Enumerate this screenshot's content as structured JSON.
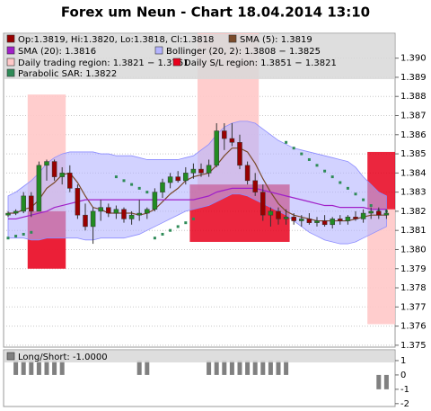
{
  "chart_data": {
    "type": "candlestick",
    "title": "Forex um Neun - Chart 18.04.2014 13:10",
    "ylim": [
      1.3749,
      1.3913
    ],
    "yticks": [
      1.375,
      1.376,
      1.377,
      1.378,
      1.379,
      {
        "value": 1.38,
        "label": "1.380"
      },
      1.381,
      1.382,
      1.383,
      1.384,
      1.385,
      1.386,
      1.387,
      1.388,
      1.389,
      {
        "value": 1.39,
        "label": "1.390"
      }
    ],
    "grid": true,
    "candles": {
      "name": "Op:1.3819, Hi:1.3820, Lo:1.3818, Cl:1.3818",
      "color": "#990000",
      "up_color": "#228b22",
      "open": [
        1.3818,
        1.3819,
        1.382,
        1.3828,
        1.382,
        1.3844,
        1.3846,
        1.3838,
        1.384,
        1.3832,
        1.3818,
        1.3812,
        1.382,
        1.3822,
        1.3819,
        1.3821,
        1.3816,
        1.3818,
        1.3819,
        1.3821,
        1.383,
        1.3835,
        1.3838,
        1.3836,
        1.384,
        1.3842,
        1.384,
        1.3844,
        1.3862,
        1.3858,
        1.3856,
        1.3844,
        1.3836,
        1.383,
        1.3818,
        1.382,
        1.3816,
        1.3817,
        1.3815,
        1.3816,
        1.3814,
        1.3815,
        1.3813,
        1.3816,
        1.3815,
        1.3817,
        1.3816,
        1.3819,
        1.382,
        1.3818
      ],
      "high": [
        1.382,
        1.3821,
        1.383,
        1.383,
        1.3846,
        1.3847,
        1.3847,
        1.3843,
        1.3844,
        1.3834,
        1.3824,
        1.3822,
        1.3826,
        1.3824,
        1.3823,
        1.3822,
        1.382,
        1.3826,
        1.3822,
        1.3832,
        1.3837,
        1.384,
        1.3841,
        1.3843,
        1.3845,
        1.3845,
        1.3847,
        1.3866,
        1.3866,
        1.3866,
        1.386,
        1.3846,
        1.384,
        1.3834,
        1.3822,
        1.3822,
        1.3821,
        1.3819,
        1.3818,
        1.3819,
        1.3817,
        1.3818,
        1.3817,
        1.3818,
        1.3818,
        1.382,
        1.3821,
        1.3822,
        1.3822,
        1.3821
      ],
      "low": [
        1.3817,
        1.3818,
        1.3819,
        1.3817,
        1.382,
        1.3836,
        1.3836,
        1.3834,
        1.383,
        1.3816,
        1.381,
        1.3803,
        1.3815,
        1.3817,
        1.3816,
        1.3814,
        1.3813,
        1.3815,
        1.3816,
        1.382,
        1.3827,
        1.3832,
        1.3835,
        1.3834,
        1.3837,
        1.3838,
        1.3838,
        1.3843,
        1.3852,
        1.3854,
        1.3842,
        1.3834,
        1.3828,
        1.3815,
        1.3812,
        1.3813,
        1.3813,
        1.3813,
        1.3812,
        1.3813,
        1.3812,
        1.3812,
        1.3811,
        1.3813,
        1.3813,
        1.3815,
        1.3814,
        1.3816,
        1.3816,
        1.3816
      ],
      "close": [
        1.3819,
        1.382,
        1.3828,
        1.382,
        1.3844,
        1.3846,
        1.3838,
        1.384,
        1.3832,
        1.3818,
        1.3812,
        1.382,
        1.3822,
        1.3819,
        1.3821,
        1.3816,
        1.3818,
        1.3819,
        1.3821,
        1.383,
        1.3835,
        1.3838,
        1.3836,
        1.384,
        1.3842,
        1.384,
        1.3844,
        1.3862,
        1.3858,
        1.3856,
        1.3844,
        1.3836,
        1.383,
        1.3818,
        1.382,
        1.3816,
        1.3817,
        1.3815,
        1.3816,
        1.3814,
        1.3815,
        1.3813,
        1.3816,
        1.3815,
        1.3817,
        1.3816,
        1.3819,
        1.382,
        1.3818,
        1.3819
      ]
    },
    "band": {
      "name": "Bollinger (20, 2): 1.3808 − 1.3825",
      "color": "#b4b4ff",
      "upper": [
        1.3828,
        1.383,
        1.3833,
        1.3836,
        1.384,
        1.3845,
        1.3848,
        1.385,
        1.3851,
        1.3851,
        1.3851,
        1.3851,
        1.385,
        1.385,
        1.3849,
        1.3849,
        1.3849,
        1.3848,
        1.3847,
        1.3847,
        1.3847,
        1.3847,
        1.3847,
        1.3848,
        1.3849,
        1.3852,
        1.3855,
        1.386,
        1.3864,
        1.3866,
        1.3867,
        1.3867,
        1.3866,
        1.3863,
        1.386,
        1.3857,
        1.3855,
        1.3853,
        1.3852,
        1.3851,
        1.385,
        1.3849,
        1.3848,
        1.3847,
        1.3846,
        1.3843,
        1.3838,
        1.3834,
        1.383,
        1.3828
      ],
      "lower": [
        1.3806,
        1.3806,
        1.3806,
        1.3805,
        1.3805,
        1.3806,
        1.3806,
        1.3806,
        1.3806,
        1.3806,
        1.3805,
        1.3805,
        1.3806,
        1.3806,
        1.3806,
        1.3806,
        1.3807,
        1.3808,
        1.381,
        1.3812,
        1.3814,
        1.3816,
        1.3818,
        1.382,
        1.3821,
        1.3822,
        1.3823,
        1.3825,
        1.3827,
        1.3829,
        1.3829,
        1.3828,
        1.3826,
        1.3824,
        1.3822,
        1.382,
        1.3818,
        1.3815,
        1.3812,
        1.3809,
        1.3807,
        1.3805,
        1.3804,
        1.3803,
        1.3803,
        1.3804,
        1.3806,
        1.3808,
        1.381,
        1.3812
      ]
    },
    "series": [
      {
        "name": "SMA (5): 1.3819",
        "color": "#7a4a2a",
        "style": "line",
        "values": [
          1.3819,
          1.3819,
          1.3821,
          1.3822,
          1.3826,
          1.3832,
          1.3835,
          1.3839,
          1.384,
          1.3835,
          1.3828,
          1.3822,
          1.3821,
          1.3819,
          1.3819,
          1.3819,
          1.3819,
          1.3818,
          1.3819,
          1.3821,
          1.3825,
          1.3829,
          1.3832,
          1.3836,
          1.3838,
          1.3839,
          1.384,
          1.3844,
          1.3849,
          1.3853,
          1.3853,
          1.3851,
          1.3845,
          1.3837,
          1.383,
          1.3824,
          1.382,
          1.3818,
          1.3817,
          1.3816,
          1.3815,
          1.3815,
          1.3815,
          1.3815,
          1.3815,
          1.3816,
          1.3817,
          1.3818,
          1.3818,
          1.3818
        ]
      },
      {
        "name": "SMA (20): 1.3816",
        "color": "#a020c8",
        "style": "line",
        "values": [
          1.3816,
          1.3816,
          1.3817,
          1.3818,
          1.3819,
          1.382,
          1.3822,
          1.3823,
          1.3824,
          1.3825,
          1.3826,
          1.3826,
          1.3826,
          1.3826,
          1.3826,
          1.3826,
          1.3826,
          1.3826,
          1.3826,
          1.3826,
          1.3826,
          1.3826,
          1.3826,
          1.3826,
          1.3826,
          1.3827,
          1.3828,
          1.383,
          1.3831,
          1.3832,
          1.3832,
          1.3832,
          1.3832,
          1.3831,
          1.383,
          1.3829,
          1.3828,
          1.3827,
          1.3826,
          1.3825,
          1.3824,
          1.3823,
          1.3823,
          1.3822,
          1.3822,
          1.3822,
          1.3822,
          1.3821,
          1.3821,
          1.3821
        ]
      },
      {
        "name": "Parabolic SAR: 1.3822",
        "color": "#2e8b57",
        "style": "dots",
        "values": [
          1.3806,
          1.3807,
          1.3808,
          1.3809,
          null,
          null,
          null,
          null,
          null,
          null,
          null,
          null,
          null,
          null,
          1.3838,
          1.3836,
          1.3834,
          1.3832,
          1.383,
          1.3806,
          1.3808,
          1.381,
          1.3812,
          1.3814,
          1.3816,
          null,
          null,
          null,
          null,
          null,
          null,
          null,
          null,
          null,
          null,
          null,
          1.3856,
          1.3853,
          1.385,
          1.3847,
          1.3844,
          1.3841,
          1.3838,
          1.3835,
          1.3832,
          1.3829,
          1.3826,
          1.3823,
          1.382,
          1.382
        ]
      }
    ],
    "regions": {
      "trading": {
        "name": "Daily trading region: 1.3821 − 1.3761",
        "color": "#ffc8c8"
      },
      "sl": {
        "name": "Daily S/L region: 1.3851 − 1.3821",
        "color": "#e8001c"
      },
      "spans": [
        {
          "trading": {
            "start": 3,
            "end": 7,
            "high": 1.3881,
            "low": 1.379
          },
          "sl": {
            "start": 3,
            "end": 7,
            "high": 1.382,
            "low": 1.379
          }
        },
        {
          "trading": {
            "start": 25,
            "end": 32,
            "high": 1.3913,
            "low": 1.3831
          },
          "sl": {
            "start": 24,
            "end": 36,
            "high": 1.3834,
            "low": 1.3804
          }
        },
        {
          "trading": {
            "start": 47,
            "end": 49,
            "high": 1.3821,
            "low": 1.3761
          },
          "sl": {
            "start": 47,
            "end": 49,
            "high": 1.3851,
            "low": 1.3821
          }
        }
      ]
    },
    "indicator": {
      "name": "Long/Short: -1.0000",
      "color": "#808080",
      "ylim": [
        -2.2,
        1.75
      ],
      "yticks": [
        1,
        0,
        -1,
        -2
      ],
      "values": [
        0,
        1,
        1,
        1,
        1,
        1,
        1,
        1,
        0,
        0,
        0,
        0,
        0,
        0,
        0,
        0,
        0,
        1,
        1,
        0,
        0,
        0,
        0,
        0,
        0,
        0,
        1,
        1,
        1,
        1,
        1,
        1,
        1,
        1,
        1,
        1,
        1,
        0,
        0,
        0,
        0,
        0,
        0,
        0,
        0,
        0,
        0,
        0,
        -1,
        -1
      ]
    }
  }
}
